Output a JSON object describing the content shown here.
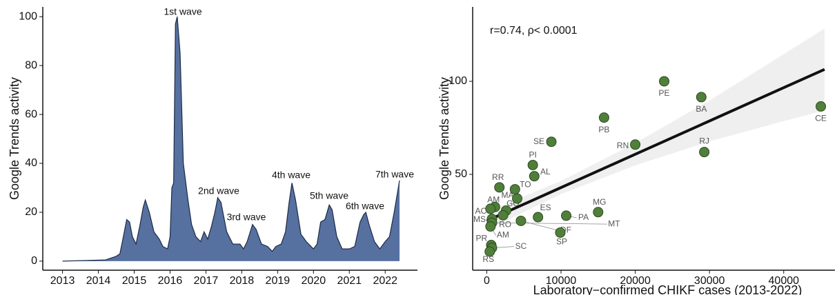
{
  "chart_data": [
    {
      "type": "area",
      "ylabel": "Google Trends activity",
      "color": "#5670a0",
      "line_color": "#1c2a44",
      "x": [
        2013.0,
        2014.2,
        2014.5,
        2014.6,
        2014.67,
        2014.79,
        2014.87,
        2014.95,
        2015.05,
        2015.15,
        2015.25,
        2015.31,
        2015.42,
        2015.55,
        2015.7,
        2015.8,
        2015.93,
        2016.0,
        2016.05,
        2016.1,
        2016.15,
        2016.2,
        2016.28,
        2016.37,
        2016.5,
        2016.6,
        2016.72,
        2016.85,
        2016.95,
        2017.05,
        2017.15,
        2017.25,
        2017.33,
        2017.42,
        2017.58,
        2017.75,
        2017.95,
        2018.05,
        2018.15,
        2018.3,
        2018.4,
        2018.55,
        2018.72,
        2018.85,
        2018.95,
        2019.1,
        2019.22,
        2019.32,
        2019.4,
        2019.5,
        2019.65,
        2019.8,
        2020.0,
        2020.1,
        2020.2,
        2020.32,
        2020.44,
        2020.52,
        2020.65,
        2020.8,
        2021.0,
        2021.15,
        2021.3,
        2021.4,
        2021.46,
        2021.55,
        2021.7,
        2021.85,
        2022.0,
        2022.12,
        2022.25,
        2022.4
      ],
      "values": [
        0,
        0.5,
        2,
        3,
        8,
        17,
        16,
        10,
        7,
        14,
        22,
        25,
        20,
        12,
        9,
        6,
        5,
        10,
        30,
        32,
        97,
        100,
        85,
        40,
        25,
        15,
        10,
        8,
        12,
        9,
        14,
        20,
        26,
        24,
        12,
        7,
        7,
        5,
        8,
        15,
        13,
        7,
        6,
        4,
        6,
        7,
        12,
        24,
        32,
        25,
        11,
        8,
        5,
        7,
        16,
        17,
        23,
        21,
        10,
        5,
        5,
        6,
        16,
        19,
        20,
        15,
        8,
        5,
        8,
        10,
        20,
        33
      ],
      "xlim": [
        2012.45,
        2022.9
      ],
      "ylim": [
        -3.7,
        104
      ],
      "xticks": [
        2013,
        2014,
        2015,
        2016,
        2017,
        2018,
        2019,
        2020,
        2021,
        2022
      ],
      "yticks": [
        0,
        20,
        40,
        60,
        80,
        100
      ],
      "annotations": [
        "1st wave",
        "2nd wave",
        "3rd wave",
        "4th wave",
        "5th wave",
        "6th wave",
        "7th wave"
      ]
    },
    {
      "type": "scatter",
      "xlabel": "Laboratory−confirmed CHIKF cases (2013-2022)",
      "ylabel": "Google Trends activity",
      "annotation": "r=0.74, ρ< 0.0001",
      "color": "#4f7f3a",
      "labels": [
        "PE",
        "BA",
        "CE",
        "PB",
        "RJ",
        "RN",
        "SE",
        "PI",
        "AL",
        "RR",
        "TO",
        "MA",
        "GO",
        "AM",
        "AC",
        "MS",
        "RO",
        "DF",
        "ES",
        "PA",
        "MG",
        "MT",
        "SP",
        "AM",
        "PR",
        "SC",
        "RS"
      ],
      "x": [
        23900,
        28900,
        45000,
        15800,
        29300,
        20000,
        8700,
        6200,
        6400,
        1700,
        3800,
        4100,
        2600,
        1100,
        500,
        700,
        2200,
        4600,
        6900,
        10700,
        15000,
        700,
        9900,
        500,
        600,
        700,
        400
      ],
      "values": [
        100,
        91.5,
        86.5,
        80.5,
        62,
        66,
        67.5,
        55,
        49,
        43,
        42,
        37,
        30.5,
        32.5,
        31.5,
        26,
        28,
        25,
        27,
        27.8,
        29.7,
        24,
        18.7,
        22,
        12,
        10.5,
        8.5
      ],
      "fit": {
        "color": "#111111",
        "band_color": "#efefef",
        "x": [
          0,
          10000,
          20000,
          30000,
          40000,
          45500
        ],
        "values": [
          25,
          42.9,
          60.8,
          78.7,
          96.6,
          106.4
        ],
        "lower": [
          20,
          39.4,
          54.8,
          67.7,
          78.6,
          84.4
        ],
        "upper": [
          30,
          46.4,
          66.8,
          89.7,
          114.6,
          128.4
        ]
      },
      "xlim": [
        -1900,
        46900
      ],
      "ylim": [
        -1.5,
        140
      ],
      "xticks": [
        0,
        10000,
        20000,
        30000,
        40000
      ],
      "yticks": [
        50,
        100
      ]
    }
  ]
}
